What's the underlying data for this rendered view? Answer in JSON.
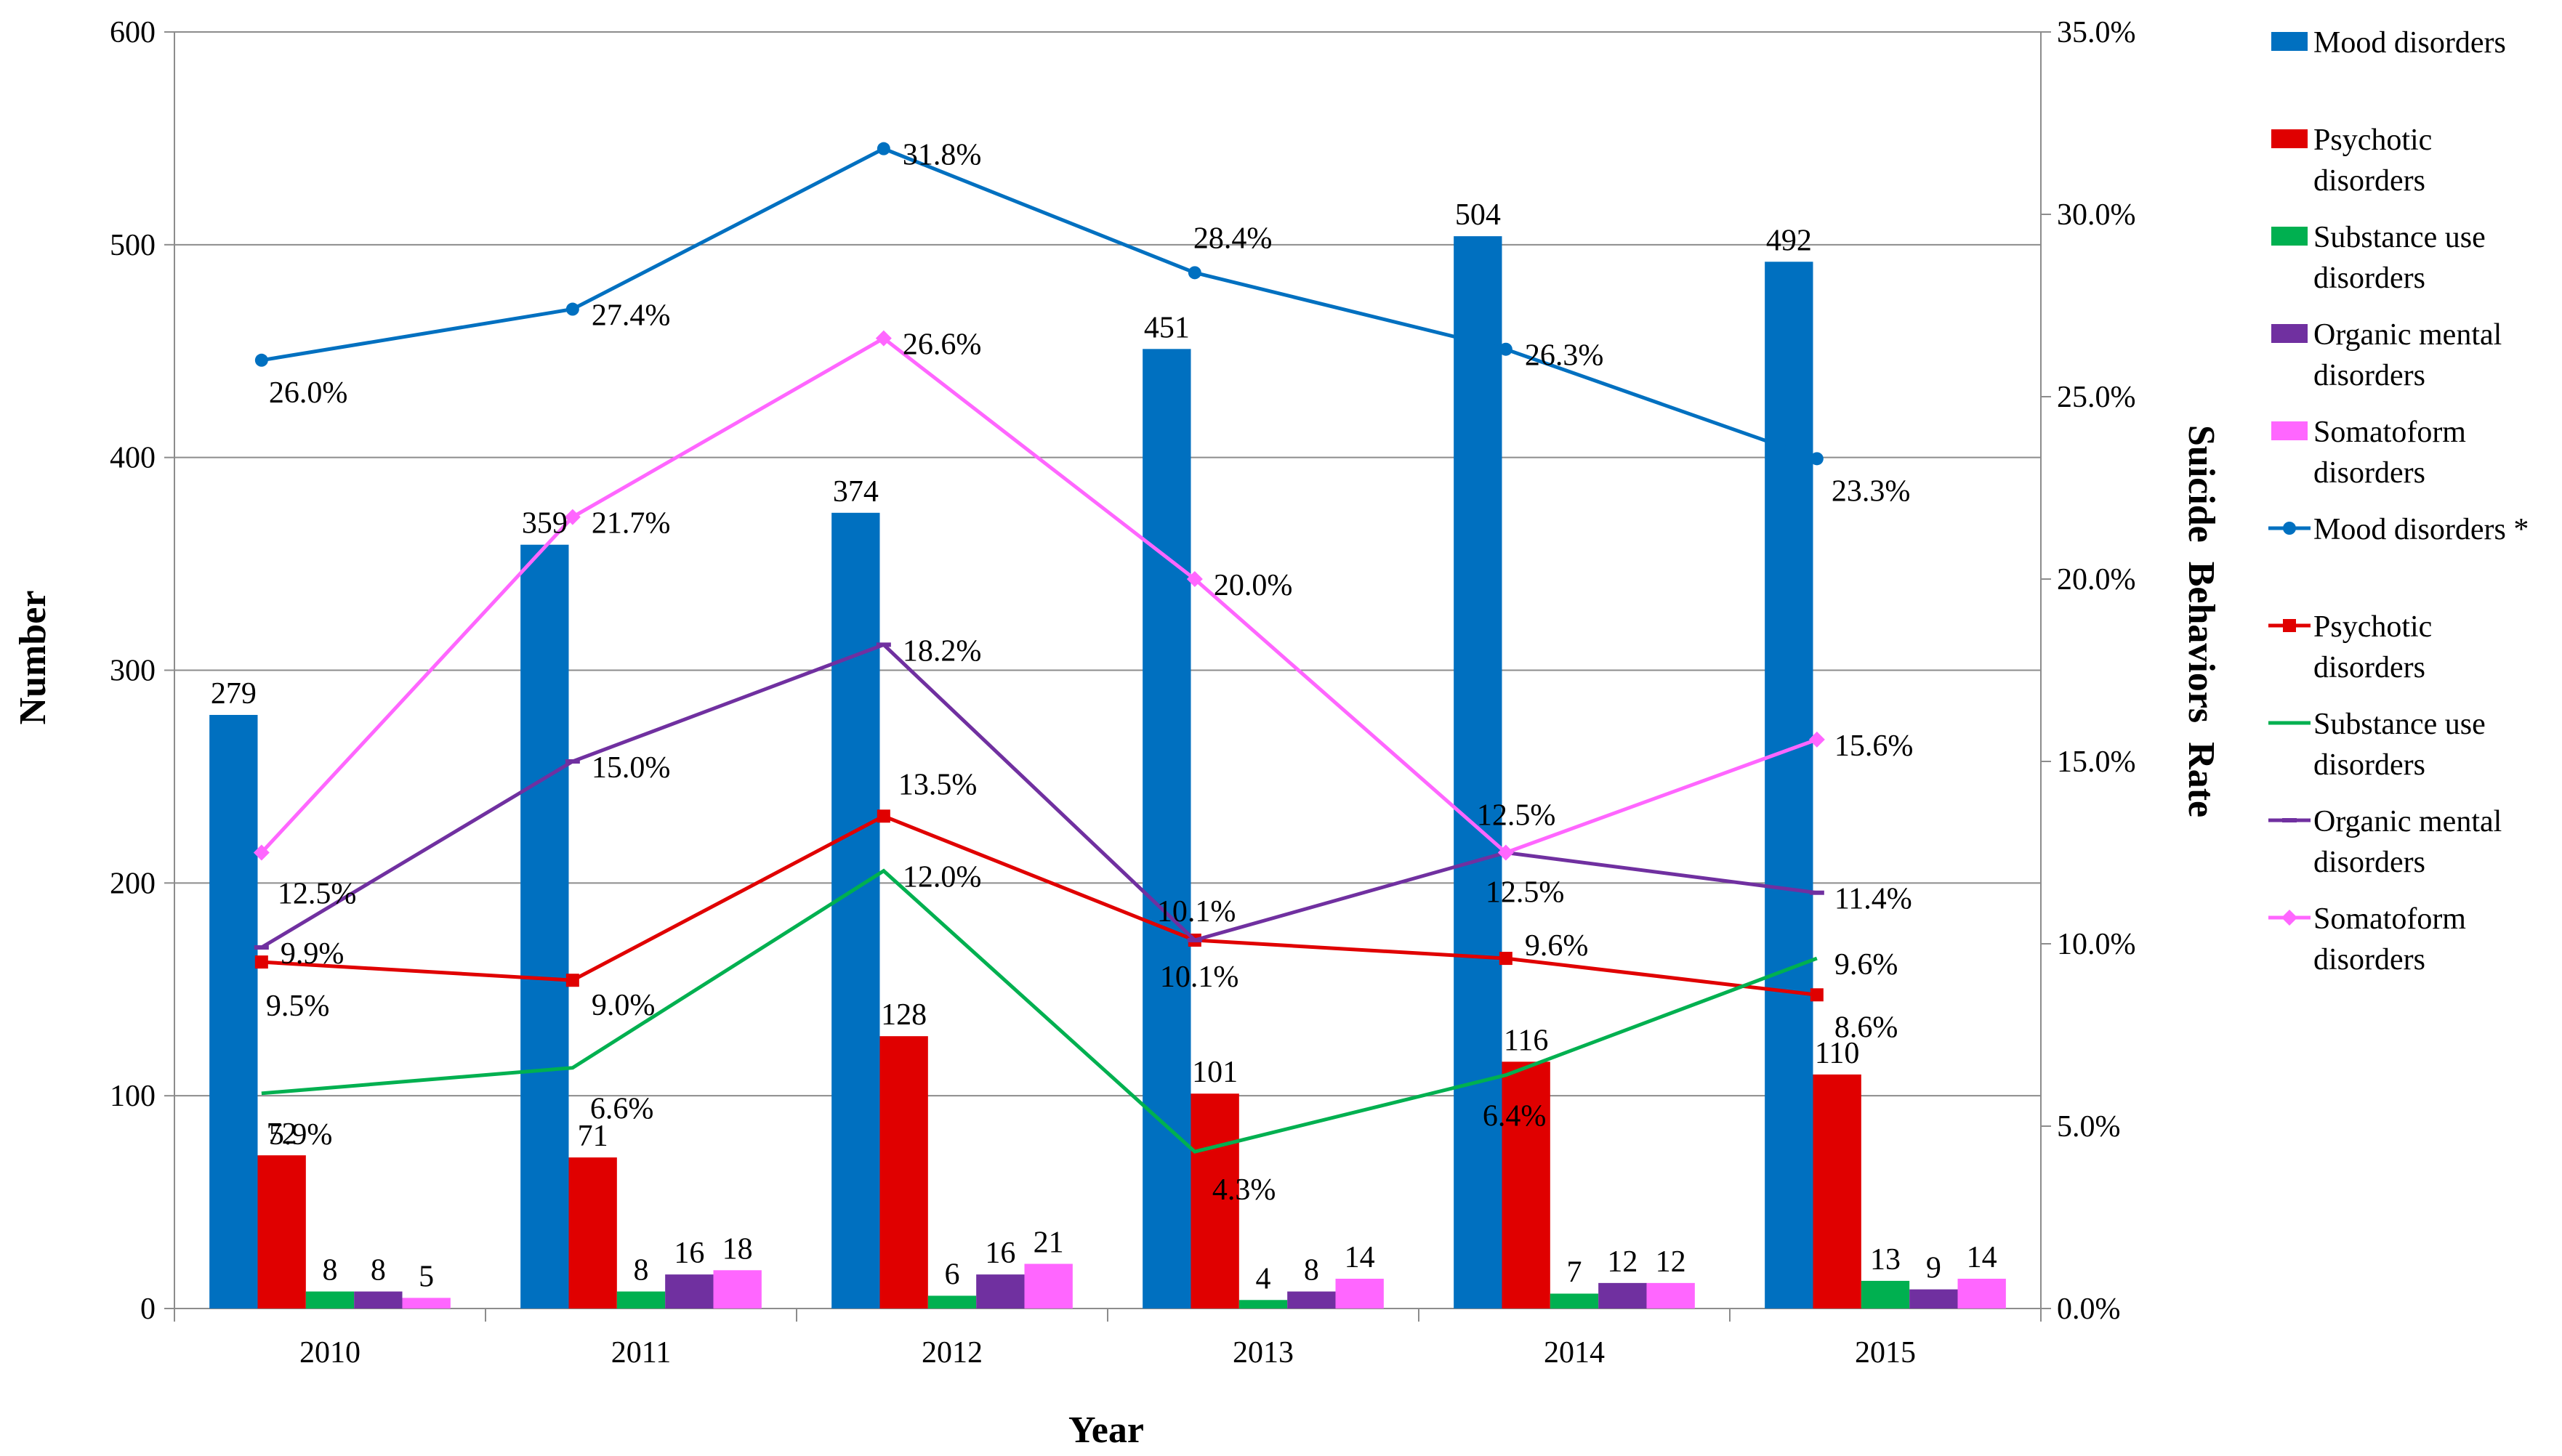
{
  "chart_data": {
    "type": "bar",
    "categories": [
      "2010",
      "2011",
      "2012",
      "2013",
      "2014",
      "2015"
    ],
    "xlabel": "Year",
    "ylabel": "Number",
    "y2label": "Suicide  Behaviors  Rate",
    "ylim": [
      0,
      600
    ],
    "yticks": [
      0,
      100,
      200,
      300,
      400,
      500,
      600
    ],
    "y2lim": [
      0,
      35
    ],
    "y2ticks": [
      "0.0%",
      "5.0%",
      "10.0%",
      "15.0%",
      "20.0%",
      "25.0%",
      "30.0%",
      "35.0%"
    ],
    "grid": true,
    "legend_position": "right",
    "bar_series": [
      {
        "name": "Mood disorders",
        "color": "#0070C0",
        "values": [
          279,
          359,
          374,
          451,
          504,
          492
        ]
      },
      {
        "name": "Psychotic disorders",
        "color": "#E00000",
        "values": [
          72,
          71,
          128,
          101,
          116,
          110
        ]
      },
      {
        "name": "Substance use disorders",
        "color": "#00B050",
        "values": [
          8,
          8,
          6,
          4,
          7,
          13
        ]
      },
      {
        "name": "Organic mental disorders",
        "color": "#7030A0",
        "values": [
          8,
          16,
          16,
          8,
          12,
          9
        ]
      },
      {
        "name": "Somatoform disorders",
        "color": "#FF66FF",
        "values": [
          5,
          18,
          21,
          14,
          12,
          14
        ]
      }
    ],
    "line_series": [
      {
        "name": "Mood disorders *",
        "color": "#0070C0",
        "marker": "circle",
        "values": [
          26.0,
          27.4,
          31.8,
          28.4,
          26.3,
          23.3
        ],
        "labels": [
          "26.0%",
          "27.4%",
          "31.8%",
          "28.4%",
          "26.3%",
          "23.3%"
        ]
      },
      {
        "name": "Psychotic disorders",
        "color": "#E00000",
        "marker": "square",
        "values": [
          9.5,
          9.0,
          13.5,
          10.1,
          9.6,
          8.6
        ],
        "labels": [
          "9.5%",
          "9.0%",
          "13.5%",
          "10.1%",
          "9.6%",
          "8.6%"
        ]
      },
      {
        "name": "Substance use disorders",
        "color": "#00B050",
        "marker": "none",
        "values": [
          5.9,
          6.6,
          12.0,
          4.3,
          6.4,
          9.6
        ],
        "labels": [
          "5.9%",
          "6.6%",
          "12.0%",
          "4.3%",
          "6.4%",
          "9.6%"
        ]
      },
      {
        "name": "Organic mental disorders",
        "color": "#7030A0",
        "marker": "dash",
        "values": [
          9.9,
          15.0,
          18.2,
          10.1,
          12.5,
          11.4
        ],
        "labels": [
          "9.9%",
          "15.0%",
          "18.2%",
          "10.1%",
          "12.5%",
          "11.4%"
        ]
      },
      {
        "name": "Somatoform disorders",
        "color": "#FF66FF",
        "marker": "diamond",
        "values": [
          12.5,
          21.7,
          26.6,
          20.0,
          12.5,
          15.6
        ],
        "labels": [
          "12.5%",
          "21.7%",
          "26.6%",
          "20.0%",
          "12.5%",
          "15.6%"
        ]
      }
    ],
    "legend": [
      {
        "kind": "bar",
        "series": 0,
        "lines": [
          "Mood disorders"
        ]
      },
      {
        "kind": "bar",
        "series": 1,
        "lines": [
          "Psychotic",
          "disorders"
        ]
      },
      {
        "kind": "bar",
        "series": 2,
        "lines": [
          "Substance use",
          "disorders"
        ]
      },
      {
        "kind": "bar",
        "series": 3,
        "lines": [
          "Organic mental",
          "disorders"
        ]
      },
      {
        "kind": "bar",
        "series": 4,
        "lines": [
          "Somatoform",
          "disorders"
        ]
      },
      {
        "kind": "line",
        "series": 0,
        "lines": [
          "Mood disorders *"
        ]
      },
      {
        "kind": "line",
        "series": 1,
        "lines": [
          "Psychotic",
          "disorders"
        ]
      },
      {
        "kind": "line",
        "series": 2,
        "lines": [
          "Substance use",
          "disorders"
        ]
      },
      {
        "kind": "line",
        "series": 3,
        "lines": [
          "Organic mental",
          "disorders"
        ]
      },
      {
        "kind": "line",
        "series": 4,
        "lines": [
          "Somatoform",
          "disorders"
        ]
      }
    ]
  }
}
